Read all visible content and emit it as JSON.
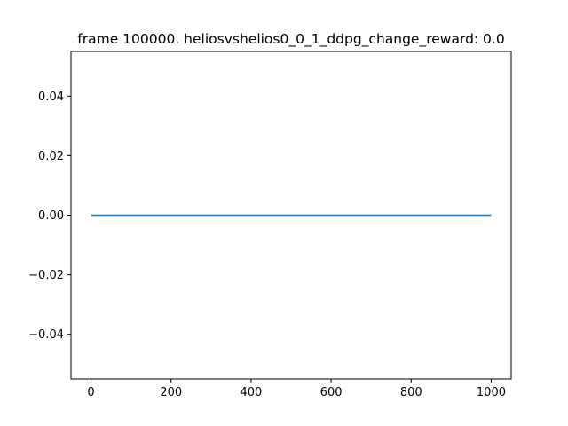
{
  "chart_data": {
    "type": "line",
    "title": "frame 100000. heliosvshelios0_0_1_ddpg_change_reward: 0.0",
    "xlabel": "",
    "ylabel": "",
    "xlim": [
      -50,
      1050
    ],
    "ylim": [
      -0.055,
      0.055
    ],
    "x_ticks": [
      0,
      200,
      400,
      600,
      800,
      1000
    ],
    "x_tick_labels": [
      "0",
      "200",
      "400",
      "600",
      "800",
      "1000"
    ],
    "y_ticks": [
      0.04,
      0.02,
      0.0,
      -0.02,
      -0.04
    ],
    "y_tick_labels": [
      "0.04",
      "0.02",
      "0.00",
      "−0.02",
      "−0.04"
    ],
    "grid": false,
    "legend": "none",
    "series": [
      {
        "color": "#1f77b4",
        "x": [
          0,
          1000
        ],
        "y": [
          0.0,
          0.0
        ]
      }
    ]
  }
}
